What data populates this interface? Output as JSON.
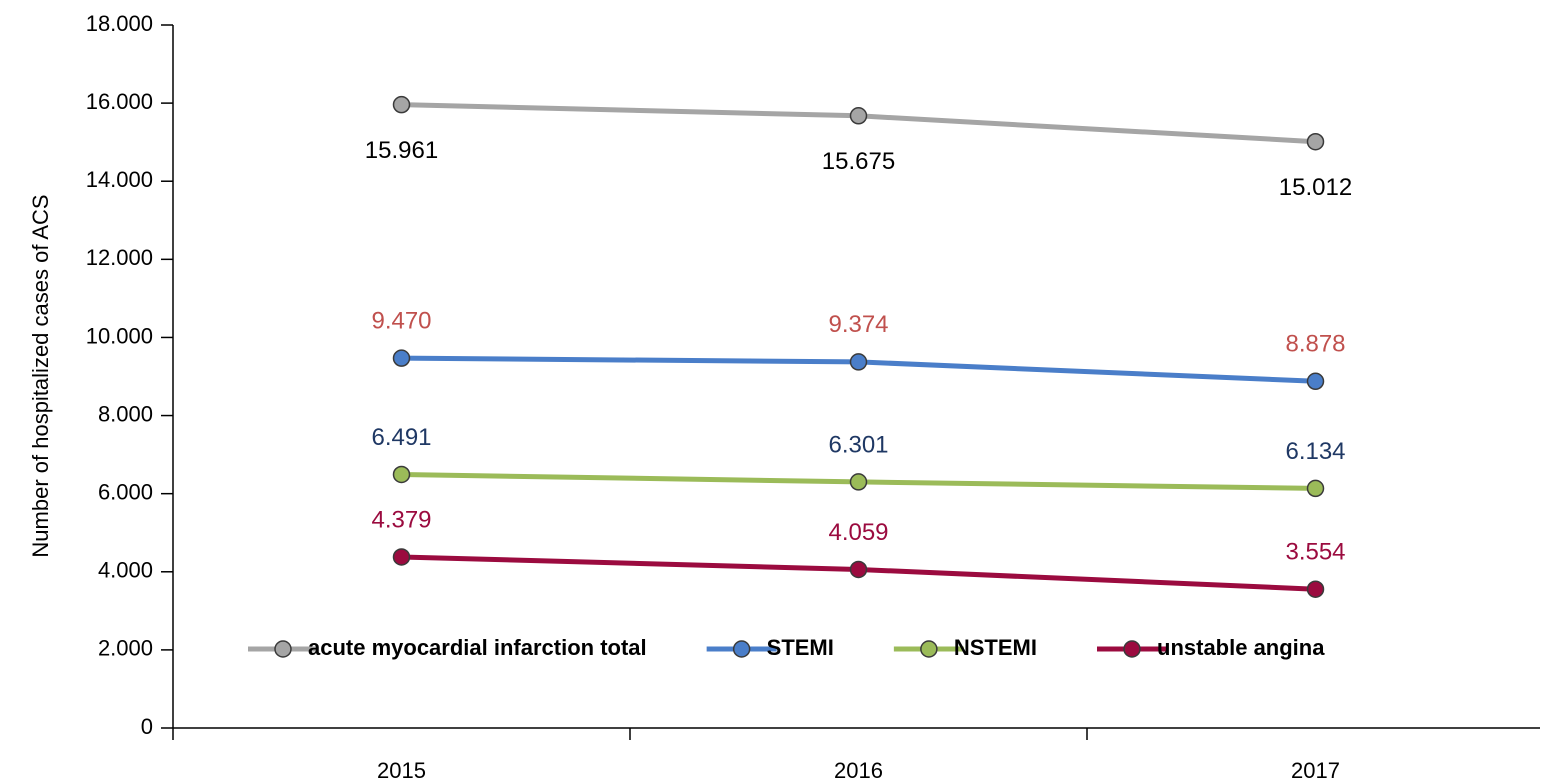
{
  "chart_data": {
    "type": "line",
    "y_axis_label": "Number of hospitalized cases of ACS",
    "categories": [
      "2015",
      "2016",
      "2017"
    ],
    "series": [
      {
        "name": "acute myocardial infarction total",
        "color": "#a5a5a5",
        "label_color": "#000000",
        "values": [
          15961,
          15675,
          15012
        ],
        "value_labels": [
          "15.961",
          "15.675",
          "15.012"
        ]
      },
      {
        "name": "STEMI",
        "color": "#4a7ec9",
        "label_color": "#c0504d",
        "values": [
          9470,
          9374,
          8878
        ],
        "value_labels": [
          "9.470",
          "9.374",
          "8.878"
        ]
      },
      {
        "name": "NSTEMI",
        "color": "#9bbb59",
        "label_color": "#1f3864",
        "values": [
          6491,
          6301,
          6134
        ],
        "value_labels": [
          "6.491",
          "6.301",
          "6.134"
        ]
      },
      {
        "name": "unstable angina",
        "color": "#9b0b3f",
        "label_color": "#9b0b3f",
        "values": [
          4379,
          4059,
          3554
        ],
        "value_labels": [
          "4.379",
          "4.059",
          "3.554"
        ]
      }
    ],
    "ylim": [
      0,
      18000
    ],
    "yticks": [
      0,
      {
        "value": 2000,
        "label": "2.000"
      },
      {
        "value": 4000,
        "label": "4.000"
      },
      {
        "value": 6000,
        "label": "6.000"
      },
      {
        "value": 8000,
        "label": "8.000"
      },
      {
        "value": 10000,
        "label": "10.000"
      },
      {
        "value": 12000,
        "label": "12.000"
      },
      {
        "value": 14000,
        "label": "14.000"
      },
      {
        "value": 16000,
        "label": "16.000"
      },
      {
        "value": 18000,
        "label": "18.000"
      }
    ],
    "grid": false,
    "legend_position": "bottom"
  }
}
